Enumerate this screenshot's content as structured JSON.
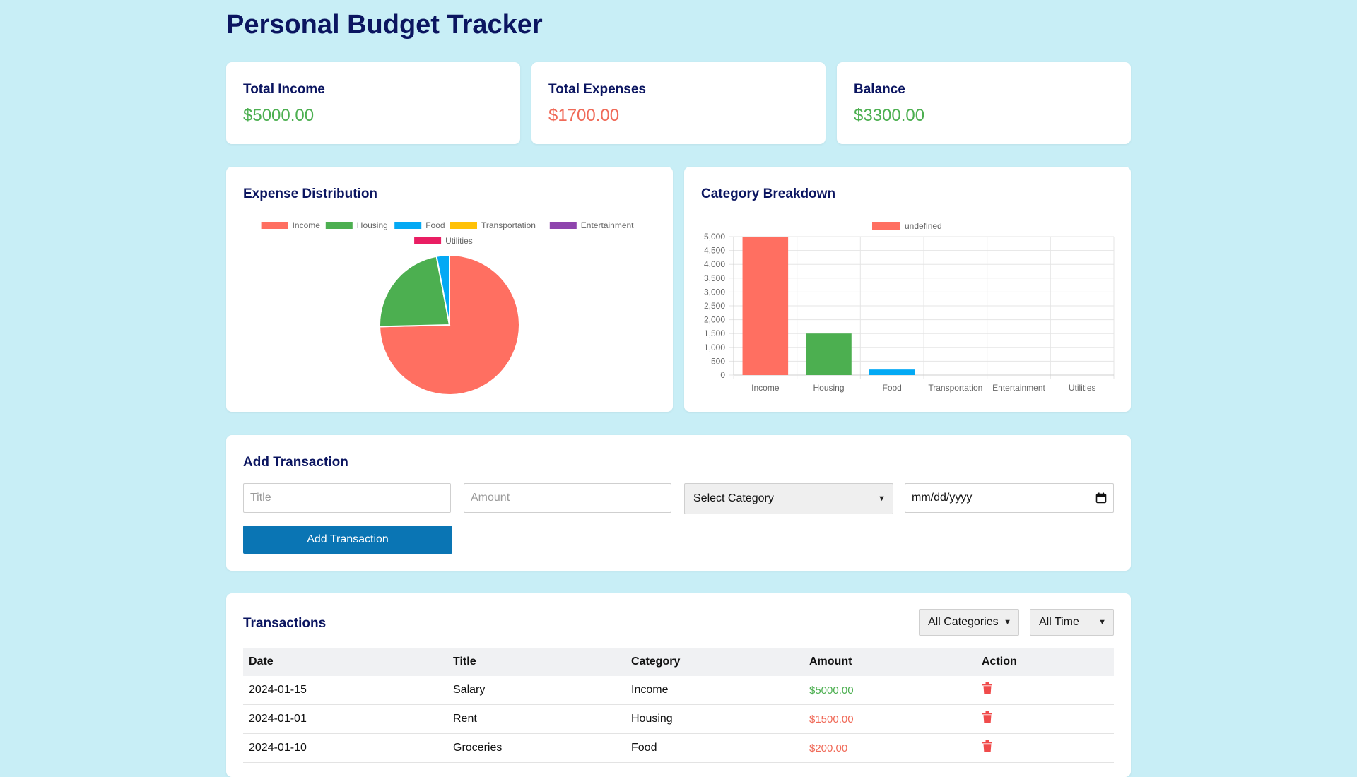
{
  "app": {
    "title": "Personal Budget Tracker"
  },
  "summary": {
    "income": {
      "label": "Total Income",
      "value": "$5000.00"
    },
    "expenses": {
      "label": "Total Expenses",
      "value": "$1700.00"
    },
    "balance": {
      "label": "Balance",
      "value": "$3300.00"
    }
  },
  "charts": {
    "pie_title": "Expense Distribution",
    "bar_title": "Category Breakdown"
  },
  "colors": {
    "income": "#ff6f61",
    "housing": "#4caf50",
    "food": "#03a9f4",
    "transportation": "#ffc107",
    "entertainment": "#8e44ad",
    "utilities": "#e91e63"
  },
  "chart_data": [
    {
      "type": "pie",
      "title": "Expense Distribution",
      "categories": [
        "Income",
        "Housing",
        "Food",
        "Transportation",
        "Entertainment",
        "Utilities"
      ],
      "values": [
        5000,
        1500,
        200,
        0,
        0,
        0
      ],
      "legend": "top"
    },
    {
      "type": "bar",
      "title": "Category Breakdown",
      "categories": [
        "Income",
        "Housing",
        "Food",
        "Transportation",
        "Entertainment",
        "Utilities"
      ],
      "series": [
        {
          "name": "undefined",
          "values": [
            5000,
            1500,
            200,
            0,
            0,
            0
          ]
        }
      ],
      "ylim": [
        0,
        5000
      ],
      "yticks": [
        "5,000",
        "4,500",
        "4,000",
        "3,500",
        "3,000",
        "2,500",
        "2,000",
        "1,500",
        "1,000",
        "500",
        "0"
      ],
      "grid": true,
      "legend": "top"
    }
  ],
  "form": {
    "title": "Add Transaction",
    "title_placeholder": "Title",
    "amount_placeholder": "Amount",
    "category_select": "Select Category",
    "date_placeholder": "mm/dd/yyyy",
    "submit_label": "Add Transaction"
  },
  "transactions": {
    "title": "Transactions",
    "category_filter": "All Categories",
    "time_filter": "All Time",
    "columns": [
      "Date",
      "Title",
      "Category",
      "Amount",
      "Action"
    ],
    "rows": [
      {
        "date": "2024-01-15",
        "title": "Salary",
        "category": "Income",
        "amount": "$5000.00",
        "kind": "income"
      },
      {
        "date": "2024-01-01",
        "title": "Rent",
        "category": "Housing",
        "amount": "$1500.00",
        "kind": "expense"
      },
      {
        "date": "2024-01-10",
        "title": "Groceries",
        "category": "Food",
        "amount": "$200.00",
        "kind": "expense"
      }
    ]
  }
}
